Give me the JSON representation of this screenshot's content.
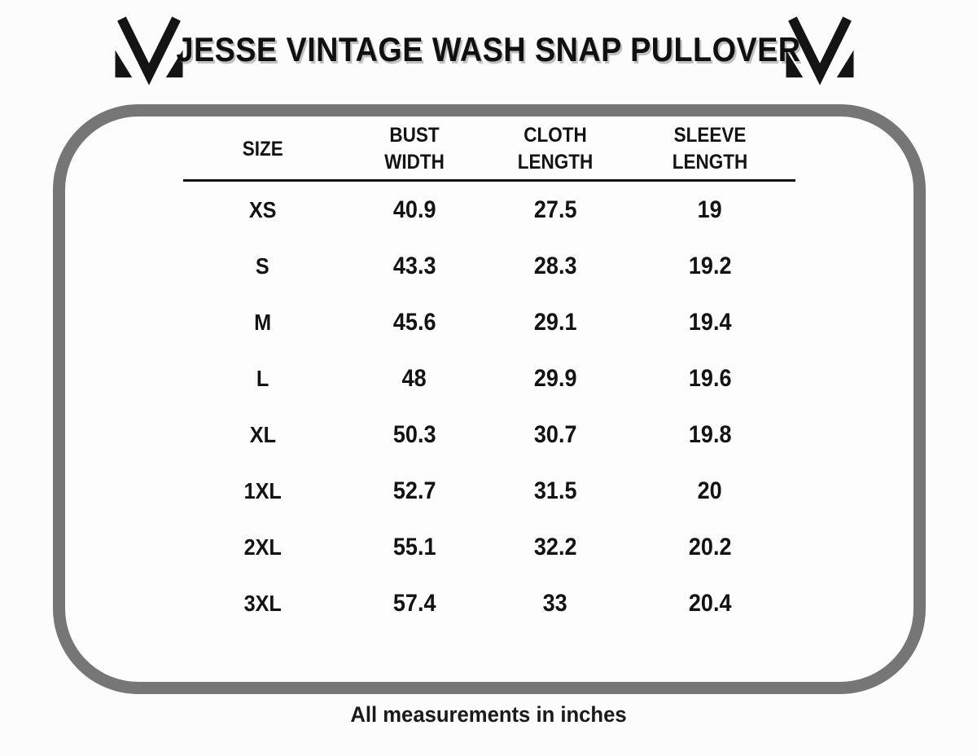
{
  "header": {
    "title": "JESSE VINTAGE WASH SNAP PULLOVER",
    "logo": "m-brand-logo"
  },
  "chart_data": {
    "type": "table",
    "title": "JESSE VINTAGE WASH SNAP PULLOVER",
    "columns": [
      "SIZE",
      "BUST WIDTH",
      "CLOTH LENGTH",
      "SLEEVE LENGTH"
    ],
    "rows": [
      [
        "XS",
        "40.9",
        "27.5",
        "19"
      ],
      [
        "S",
        "43.3",
        "28.3",
        "19.2"
      ],
      [
        "M",
        "45.6",
        "29.1",
        "19.4"
      ],
      [
        "L",
        "48",
        "29.9",
        "19.6"
      ],
      [
        "XL",
        "50.3",
        "30.7",
        "19.8"
      ],
      [
        "1XL",
        "52.7",
        "31.5",
        "20"
      ],
      [
        "2XL",
        "55.1",
        "32.2",
        "20.2"
      ],
      [
        "3XL",
        "57.4",
        "33",
        "20.4"
      ]
    ],
    "note": "All measurements in inches",
    "units": "inches"
  },
  "colors": {
    "frame_border": "#767676",
    "text": "#131313",
    "header_rule": "#111111",
    "background": "#fcfcfc"
  }
}
